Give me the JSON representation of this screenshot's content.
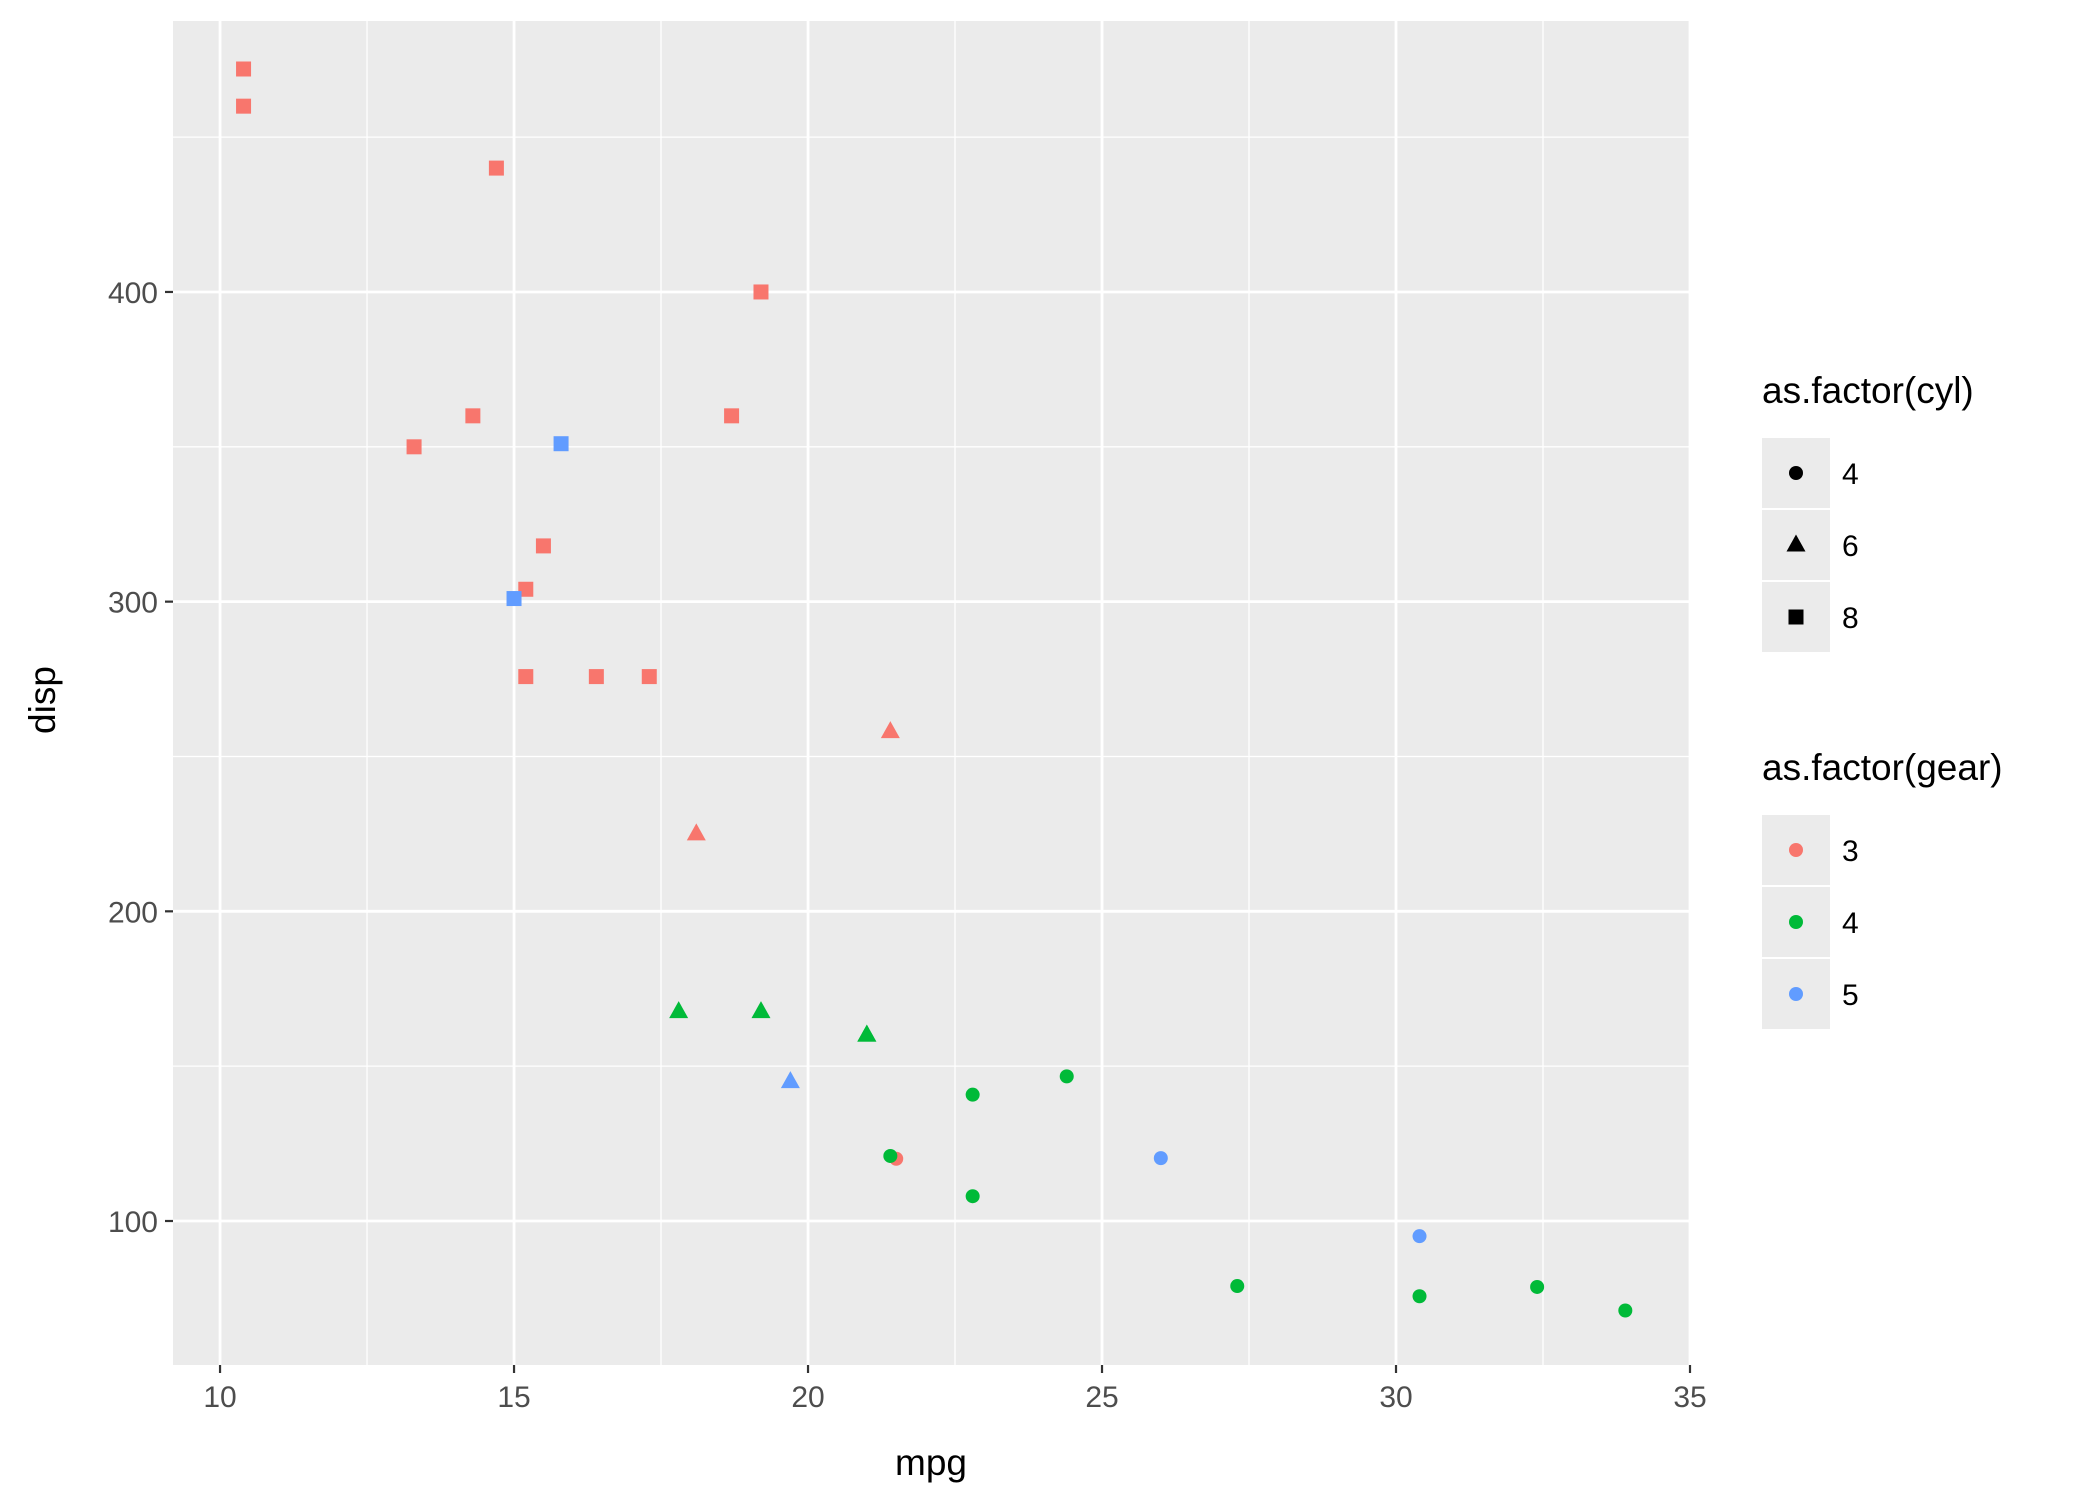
{
  "chart_data": {
    "type": "scatter",
    "title": "",
    "xlabel": "mpg",
    "ylabel": "disp",
    "xlim": [
      9.2,
      35.0
    ],
    "ylim": [
      53.5,
      487.5
    ],
    "x_ticks": [
      10,
      15,
      20,
      25,
      30,
      35
    ],
    "x_tick_labels": [
      "10",
      "15",
      "20",
      "25",
      "30",
      "35"
    ],
    "y_ticks": [
      100,
      200,
      300,
      400
    ],
    "y_tick_labels": [
      "100",
      "200",
      "300",
      "400"
    ],
    "grid": true,
    "panel_background": "#ebebeb",
    "legend_position": "right",
    "legends": [
      {
        "title": "as.factor(cyl)",
        "aesthetic": "shape",
        "entries": [
          {
            "label": "4",
            "shape": "circle"
          },
          {
            "label": "6",
            "shape": "triangle"
          },
          {
            "label": "8",
            "shape": "square"
          }
        ]
      },
      {
        "title": "as.factor(gear)",
        "aesthetic": "color",
        "entries": [
          {
            "label": "3",
            "color": "#f8766d"
          },
          {
            "label": "4",
            "color": "#00ba38"
          },
          {
            "label": "5",
            "color": "#619cff"
          }
        ]
      }
    ],
    "points": [
      {
        "mpg": 21.0,
        "disp": 160.0,
        "cyl": "6",
        "gear": "4"
      },
      {
        "mpg": 21.0,
        "disp": 160.0,
        "cyl": "6",
        "gear": "4"
      },
      {
        "mpg": 22.8,
        "disp": 108.0,
        "cyl": "4",
        "gear": "4"
      },
      {
        "mpg": 21.4,
        "disp": 258.0,
        "cyl": "6",
        "gear": "3"
      },
      {
        "mpg": 18.7,
        "disp": 360.0,
        "cyl": "8",
        "gear": "3"
      },
      {
        "mpg": 18.1,
        "disp": 225.0,
        "cyl": "6",
        "gear": "3"
      },
      {
        "mpg": 14.3,
        "disp": 360.0,
        "cyl": "8",
        "gear": "3"
      },
      {
        "mpg": 24.4,
        "disp": 146.7,
        "cyl": "4",
        "gear": "4"
      },
      {
        "mpg": 22.8,
        "disp": 140.8,
        "cyl": "4",
        "gear": "4"
      },
      {
        "mpg": 19.2,
        "disp": 167.6,
        "cyl": "6",
        "gear": "4"
      },
      {
        "mpg": 17.8,
        "disp": 167.6,
        "cyl": "6",
        "gear": "4"
      },
      {
        "mpg": 16.4,
        "disp": 275.8,
        "cyl": "8",
        "gear": "3"
      },
      {
        "mpg": 17.3,
        "disp": 275.8,
        "cyl": "8",
        "gear": "3"
      },
      {
        "mpg": 15.2,
        "disp": 275.8,
        "cyl": "8",
        "gear": "3"
      },
      {
        "mpg": 10.4,
        "disp": 472.0,
        "cyl": "8",
        "gear": "3"
      },
      {
        "mpg": 10.4,
        "disp": 460.0,
        "cyl": "8",
        "gear": "3"
      },
      {
        "mpg": 14.7,
        "disp": 440.0,
        "cyl": "8",
        "gear": "3"
      },
      {
        "mpg": 32.4,
        "disp": 78.7,
        "cyl": "4",
        "gear": "4"
      },
      {
        "mpg": 30.4,
        "disp": 75.7,
        "cyl": "4",
        "gear": "4"
      },
      {
        "mpg": 33.9,
        "disp": 71.1,
        "cyl": "4",
        "gear": "4"
      },
      {
        "mpg": 21.5,
        "disp": 120.1,
        "cyl": "4",
        "gear": "3"
      },
      {
        "mpg": 15.5,
        "disp": 318.0,
        "cyl": "8",
        "gear": "3"
      },
      {
        "mpg": 15.2,
        "disp": 304.0,
        "cyl": "8",
        "gear": "3"
      },
      {
        "mpg": 13.3,
        "disp": 350.0,
        "cyl": "8",
        "gear": "3"
      },
      {
        "mpg": 19.2,
        "disp": 400.0,
        "cyl": "8",
        "gear": "3"
      },
      {
        "mpg": 27.3,
        "disp": 79.0,
        "cyl": "4",
        "gear": "4"
      },
      {
        "mpg": 26.0,
        "disp": 120.3,
        "cyl": "4",
        "gear": "5"
      },
      {
        "mpg": 30.4,
        "disp": 95.1,
        "cyl": "4",
        "gear": "5"
      },
      {
        "mpg": 15.8,
        "disp": 351.0,
        "cyl": "8",
        "gear": "5"
      },
      {
        "mpg": 19.7,
        "disp": 145.0,
        "cyl": "6",
        "gear": "5"
      },
      {
        "mpg": 15.0,
        "disp": 301.0,
        "cyl": "8",
        "gear": "5"
      },
      {
        "mpg": 21.4,
        "disp": 121.0,
        "cyl": "4",
        "gear": "4"
      }
    ]
  }
}
